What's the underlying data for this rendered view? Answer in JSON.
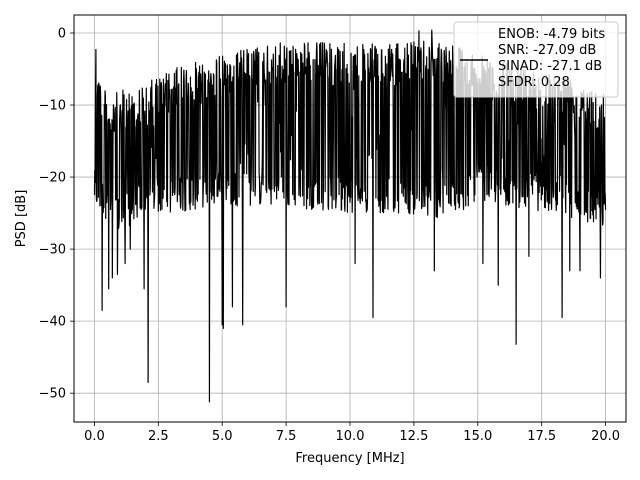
{
  "chart_data": {
    "type": "line",
    "title": "",
    "xlabel": "Frequency [MHz]",
    "ylabel": "PSD [dB]",
    "xlim": [
      -0.8,
      20.8
    ],
    "ylim": [
      -54,
      2.5
    ],
    "xticks": [
      0.0,
      2.5,
      5.0,
      7.5,
      10.0,
      12.5,
      15.0,
      17.5,
      20.0
    ],
    "xtick_labels": [
      "0.0",
      "2.5",
      "5.0",
      "7.5",
      "10.0",
      "12.5",
      "15.0",
      "17.5",
      "20.0"
    ],
    "yticks": [
      0,
      -10,
      -20,
      -30,
      -40,
      -50
    ],
    "ytick_labels": [
      "0",
      "−10",
      "−20",
      "−30",
      "−40",
      "−50"
    ],
    "grid": true,
    "legend_position": "top-right",
    "legend": [
      "ENOB: -4.79 bits",
      "SNR: -27.09 dB",
      "SINAD: -27.1 dB",
      "SFDR: 0.28"
    ],
    "series_color": "#000000",
    "series": [
      {
        "name": "",
        "x_start": 0.0,
        "x_end": 20.0,
        "upper_envelope": [
          [
            0.0,
            -2.5
          ],
          [
            0.5,
            -9
          ],
          [
            1.0,
            -8
          ],
          [
            2.0,
            -7
          ],
          [
            3.0,
            -5
          ],
          [
            4.0,
            -4
          ],
          [
            5.0,
            -3
          ],
          [
            6.0,
            -2
          ],
          [
            7.0,
            -1.5
          ],
          [
            8.0,
            -1
          ],
          [
            10.0,
            -1.5
          ],
          [
            12.0,
            -1.5
          ],
          [
            13.0,
            -0.5
          ],
          [
            14.0,
            -1
          ],
          [
            15.0,
            -3
          ],
          [
            16.0,
            -4
          ],
          [
            17.5,
            -5
          ],
          [
            19.0,
            -6
          ],
          [
            20.0,
            -8
          ]
        ],
        "lower_envelope": [
          [
            0.0,
            -24
          ],
          [
            1.0,
            -28
          ],
          [
            2.0,
            -25
          ],
          [
            3.0,
            -25
          ],
          [
            5.0,
            -24
          ],
          [
            7.0,
            -24
          ],
          [
            10.0,
            -25
          ],
          [
            12.0,
            -25
          ],
          [
            14.0,
            -26
          ],
          [
            15.0,
            -23
          ],
          [
            16.0,
            -24
          ],
          [
            18.0,
            -25
          ],
          [
            20.0,
            -27
          ]
        ],
        "dips": [
          [
            0.3,
            -38.5
          ],
          [
            0.55,
            -35.5
          ],
          [
            0.7,
            -34
          ],
          [
            0.9,
            -33.5
          ],
          [
            1.2,
            -32
          ],
          [
            1.4,
            -30
          ],
          [
            1.95,
            -35.5
          ],
          [
            2.1,
            -48.5
          ],
          [
            4.5,
            -51.2
          ],
          [
            5.0,
            -40.5
          ],
          [
            5.05,
            -41
          ],
          [
            5.4,
            -38
          ],
          [
            5.8,
            -40.5
          ],
          [
            7.5,
            -38
          ],
          [
            10.2,
            -32
          ],
          [
            10.9,
            -39.5
          ],
          [
            13.3,
            -33
          ],
          [
            15.2,
            -32
          ],
          [
            15.8,
            -35
          ],
          [
            16.5,
            -43.2
          ],
          [
            17.0,
            -31
          ],
          [
            18.3,
            -39.5
          ],
          [
            18.6,
            -33
          ],
          [
            19.0,
            -33
          ],
          [
            19.8,
            -34
          ]
        ],
        "peaks": [
          [
            0.05,
            -2.3
          ],
          [
            12.7,
            0.3
          ],
          [
            13.2,
            0.4
          ]
        ]
      }
    ]
  }
}
